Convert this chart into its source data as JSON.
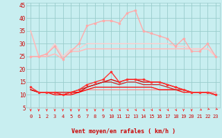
{
  "title": "",
  "xlabel": "Vent moyen/en rafales ( km/h )",
  "xlim": [
    -0.5,
    23.5
  ],
  "ylim": [
    5,
    46
  ],
  "yticks": [
    5,
    10,
    15,
    20,
    25,
    30,
    35,
    40,
    45
  ],
  "xticks": [
    0,
    1,
    2,
    3,
    4,
    5,
    6,
    7,
    8,
    9,
    10,
    11,
    12,
    13,
    14,
    15,
    16,
    17,
    18,
    19,
    20,
    21,
    22,
    23
  ],
  "bg_color": "#c8eef0",
  "grid_color": "#99cccc",
  "series": [
    {
      "y": [
        35,
        25,
        25,
        26,
        24,
        27,
        27,
        28,
        28,
        28,
        28,
        28,
        28,
        28,
        28,
        28,
        28,
        28,
        28,
        28,
        28,
        28,
        28,
        25
      ],
      "color": "#ffbbbb",
      "marker": null,
      "lw": 1.2,
      "zorder": 2
    },
    {
      "y": [
        25,
        25,
        26,
        29,
        24,
        27,
        30,
        37,
        38,
        39,
        39,
        38,
        42,
        43,
        35,
        34,
        33,
        32,
        29,
        32,
        27,
        27,
        30,
        25
      ],
      "color": "#ffaaaa",
      "marker": "s",
      "ms": 2.0,
      "lw": 1.0,
      "zorder": 3
    },
    {
      "y": [
        25,
        25,
        26,
        30,
        25,
        28,
        28,
        30,
        30,
        30,
        30,
        30,
        30,
        30,
        30,
        30,
        30,
        30,
        29,
        29,
        28,
        28,
        28,
        25
      ],
      "color": "#ffcccc",
      "marker": null,
      "lw": 1.0,
      "zorder": 2
    },
    {
      "y": [
        13,
        11,
        11,
        11,
        10,
        11,
        12,
        14,
        15,
        16,
        19,
        15,
        16,
        16,
        16,
        15,
        15,
        14,
        13,
        12,
        11,
        11,
        11,
        10
      ],
      "color": "#ff3333",
      "marker": "s",
      "ms": 2.0,
      "lw": 1.0,
      "zorder": 4
    },
    {
      "y": [
        12,
        11,
        11,
        11,
        10,
        11,
        11,
        13,
        14,
        15,
        16,
        15,
        16,
        16,
        15,
        15,
        15,
        14,
        13,
        12,
        11,
        11,
        11,
        10
      ],
      "color": "#dd0000",
      "marker": null,
      "lw": 1.0,
      "zorder": 3
    },
    {
      "y": [
        12,
        11,
        11,
        10,
        10,
        10,
        11,
        12,
        13,
        13,
        13,
        13,
        13,
        13,
        13,
        13,
        12,
        12,
        12,
        11,
        11,
        11,
        11,
        10
      ],
      "color": "#ff0000",
      "marker": null,
      "lw": 0.9,
      "zorder": 3
    },
    {
      "y": [
        12,
        11,
        11,
        11,
        11,
        11,
        12,
        13,
        14,
        15,
        15,
        14,
        15,
        15,
        14,
        14,
        14,
        13,
        12,
        12,
        11,
        11,
        11,
        10
      ],
      "color": "#cc2222",
      "marker": null,
      "lw": 0.9,
      "zorder": 3
    },
    {
      "y": [
        12,
        11,
        11,
        11,
        11,
        11,
        11,
        12,
        12,
        12,
        12,
        12,
        12,
        12,
        12,
        12,
        12,
        12,
        12,
        12,
        11,
        11,
        11,
        11
      ],
      "color": "#ff8888",
      "marker": null,
      "lw": 0.9,
      "zorder": 2
    }
  ],
  "arrow_color": "#ff2222",
  "wind_directions": [
    0,
    0,
    0,
    0,
    0,
    0,
    0,
    0,
    0,
    0,
    1,
    1,
    1,
    1,
    1,
    1,
    1,
    1,
    1,
    0,
    0,
    2,
    3,
    3
  ]
}
